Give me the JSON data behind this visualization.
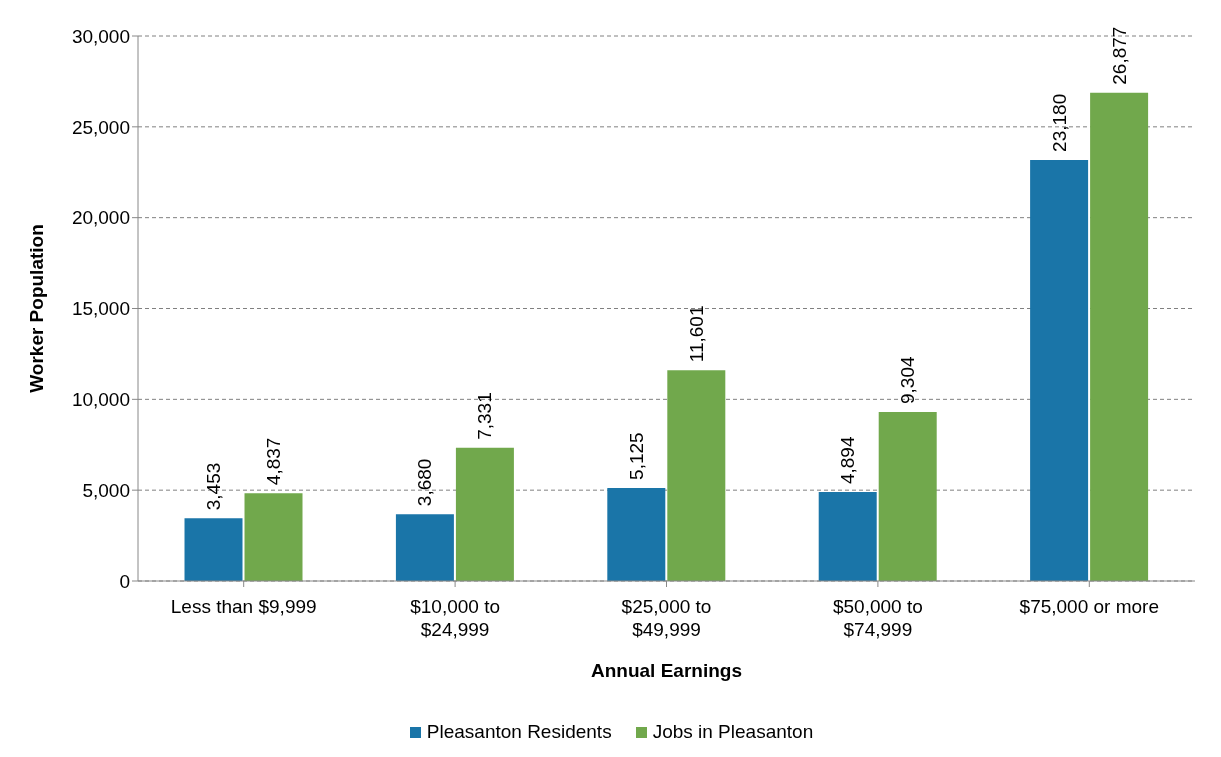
{
  "chart_data": {
    "type": "bar",
    "xlabel": "Annual Earnings",
    "ylabel": "Worker Population",
    "categories": [
      "Less than $9,999",
      "$10,000 to $24,999",
      "$25,000 to $49,999",
      "$50,000 to $74,999",
      "$75,000 or more"
    ],
    "series": [
      {
        "name": "Pleasanton Residents",
        "color": "#1a75a8",
        "values": [
          3453,
          3680,
          5125,
          4894,
          23180
        ],
        "value_labels": [
          "3,453",
          "3,680",
          "5,125",
          "4,894",
          "23,180"
        ]
      },
      {
        "name": "Jobs in Pleasanton",
        "color": "#71a84c",
        "values": [
          4837,
          7331,
          11601,
          9304,
          26877
        ],
        "value_labels": [
          "4,837",
          "7,331",
          "11,601",
          "9,304",
          "26,877"
        ]
      }
    ],
    "ylim": [
      0,
      30000
    ],
    "yticks": [
      {
        "value": 0,
        "label": "0"
      },
      {
        "value": 5000,
        "label": "5,000"
      },
      {
        "value": 10000,
        "label": "10,000"
      },
      {
        "value": 15000,
        "label": "15,000"
      },
      {
        "value": 20000,
        "label": "20,000"
      },
      {
        "value": 25000,
        "label": "25,000"
      },
      {
        "value": 30000,
        "label": "30,000"
      }
    ],
    "grid": "y",
    "legend": "bottom"
  }
}
